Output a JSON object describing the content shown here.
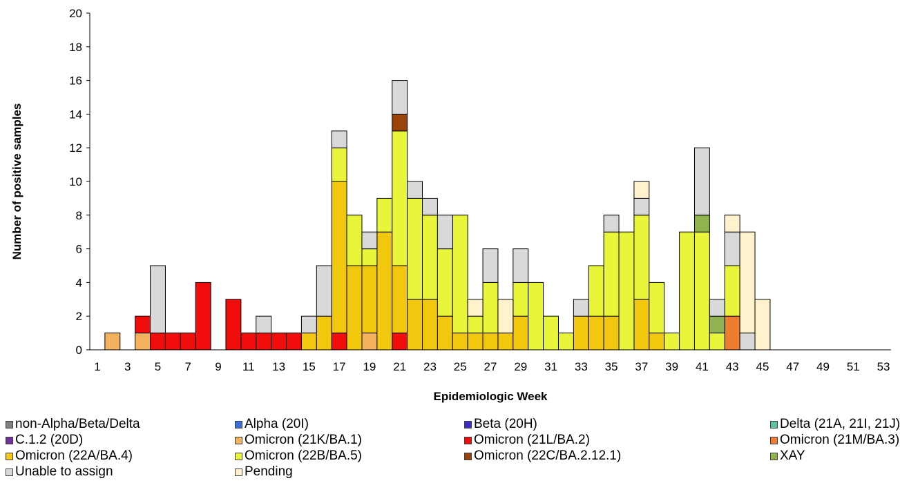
{
  "chart_data": {
    "type": "bar",
    "stacked": true,
    "title": "",
    "xlabel": "Epidemiologic Week",
    "ylabel": "Number of positive samples",
    "ylim": [
      0,
      20
    ],
    "yticks": [
      0,
      2,
      4,
      6,
      8,
      10,
      12,
      14,
      16,
      18,
      20
    ],
    "x_range": [
      1,
      53
    ],
    "xticks": [
      1,
      3,
      5,
      7,
      9,
      11,
      13,
      15,
      17,
      19,
      21,
      23,
      25,
      27,
      29,
      31,
      33,
      35,
      37,
      39,
      41,
      43,
      45,
      47,
      49,
      51,
      53
    ],
    "grid": false,
    "legend_position": "bottom",
    "series": [
      {
        "name": "non-Alpha/Beta/Delta",
        "color": "#808080",
        "values": {}
      },
      {
        "name": "Alpha (20I)",
        "color": "#3a6fd8",
        "values": {}
      },
      {
        "name": "Beta (20H)",
        "color": "#3d2bc7",
        "values": {}
      },
      {
        "name": "Delta (21A, 21I, 21J)",
        "color": "#5fbfa6",
        "values": {}
      },
      {
        "name": "C.1.2 (20D)",
        "color": "#7030a0",
        "values": {}
      },
      {
        "name": "Omicron (21K/BA.1)",
        "color": "#f4b25e",
        "values": {
          "2": 1,
          "4": 1,
          "19": 1
        }
      },
      {
        "name": "Omicron (21L/BA.2)",
        "color": "#f20d0d",
        "values": {
          "4": 1,
          "5": 1,
          "6": 1,
          "7": 1,
          "8": 4,
          "10": 3,
          "11": 1,
          "12": 1,
          "13": 1,
          "14": 1,
          "17": 1,
          "21": 1
        }
      },
      {
        "name": "Omicron (21M/BA.3)",
        "color": "#ed7d31",
        "values": {
          "43": 2
        }
      },
      {
        "name": "Omicron (22A/BA.4)",
        "color": "#f2c80f",
        "values": {
          "15": 1,
          "16": 2,
          "17": 9,
          "18": 5,
          "19": 4,
          "20": 7,
          "21": 4,
          "22": 3,
          "23": 3,
          "24": 2,
          "25": 1,
          "26": 1,
          "27": 1,
          "28": 1,
          "29": 2,
          "33": 2,
          "34": 2,
          "35": 2,
          "37": 3,
          "38": 1
        }
      },
      {
        "name": "Omicron (22B/BA.5)",
        "color": "#e8f53a",
        "values": {
          "17": 2,
          "18": 3,
          "19": 1,
          "20": 2,
          "21": 8,
          "22": 6,
          "23": 5,
          "24": 4,
          "25": 7,
          "26": 1,
          "27": 3,
          "29": 2,
          "30": 4,
          "31": 2,
          "32": 1,
          "34": 3,
          "35": 5,
          "36": 7,
          "37": 5,
          "38": 3,
          "39": 1,
          "40": 7,
          "41": 7,
          "42": 1,
          "43": 3
        }
      },
      {
        "name": "Omicron (22C/BA.2.12.1)",
        "color": "#99440a",
        "values": {
          "21": 1
        }
      },
      {
        "name": "XAY",
        "color": "#8fb34f",
        "values": {
          "41": 1,
          "42": 1
        }
      },
      {
        "name": "Unable to assign",
        "color": "#d9d9d9",
        "values": {
          "5": 4,
          "12": 1,
          "15": 1,
          "16": 3,
          "17": 1,
          "19": 1,
          "21": 2,
          "22": 1,
          "23": 1,
          "24": 2,
          "27": 2,
          "29": 2,
          "33": 1,
          "35": 1,
          "37": 1,
          "41": 4,
          "42": 1,
          "43": 2,
          "44": 1
        }
      },
      {
        "name": "Pending",
        "color": "#fff2cc",
        "values": {
          "26": 1,
          "28": 2,
          "37": 1,
          "43": 1,
          "44": 6,
          "45": 3
        }
      }
    ]
  }
}
